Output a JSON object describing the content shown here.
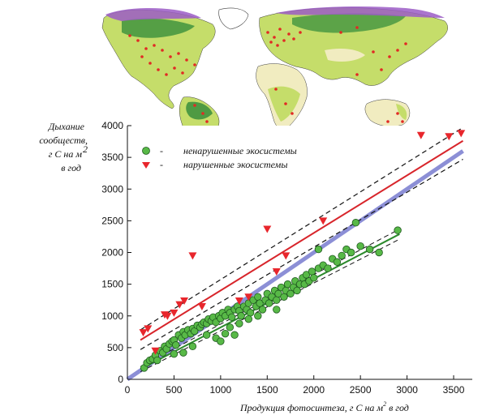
{
  "chart_data": {
    "type": "scatter",
    "ylabel_lines": [
      "Дыхание",
      "сообществ,",
      "г С на м",
      "в год"
    ],
    "ylabel_superscript": "2",
    "xlabel": "Продукция фотосинтеза, г С на м",
    "xlabel_superscript": "2",
    "xlabel_suffix": " в год",
    "xlim": [
      0,
      3700
    ],
    "ylim": [
      0,
      4000
    ],
    "xticks": [
      0,
      500,
      1000,
      1500,
      2000,
      2500,
      3000,
      3500
    ],
    "yticks": [
      0,
      500,
      1000,
      1500,
      2000,
      2500,
      3000,
      3500,
      4000
    ],
    "legend_position": "top-left",
    "series": [
      {
        "name": "ненарушенные экосистемы",
        "marker": "circle",
        "color": "#58b947",
        "points": [
          [
            180,
            180
          ],
          [
            210,
            260
          ],
          [
            240,
            300
          ],
          [
            270,
            320
          ],
          [
            300,
            380
          ],
          [
            320,
            300
          ],
          [
            350,
            450
          ],
          [
            380,
            420
          ],
          [
            400,
            520
          ],
          [
            420,
            480
          ],
          [
            450,
            560
          ],
          [
            480,
            600
          ],
          [
            500,
            620
          ],
          [
            520,
            540
          ],
          [
            550,
            700
          ],
          [
            580,
            650
          ],
          [
            600,
            750
          ],
          [
            620,
            700
          ],
          [
            650,
            780
          ],
          [
            680,
            720
          ],
          [
            700,
            800
          ],
          [
            720,
            760
          ],
          [
            750,
            850
          ],
          [
            780,
            820
          ],
          [
            800,
            870
          ],
          [
            820,
            900
          ],
          [
            850,
            880
          ],
          [
            870,
            950
          ],
          [
            900,
            920
          ],
          [
            920,
            980
          ],
          [
            950,
            900
          ],
          [
            980,
            1000
          ],
          [
            1000,
            960
          ],
          [
            1020,
            1050
          ],
          [
            1050,
            1000
          ],
          [
            1080,
            1100
          ],
          [
            1100,
            1050
          ],
          [
            1120,
            980
          ],
          [
            1150,
            1100
          ],
          [
            1180,
            1150
          ],
          [
            1200,
            1080
          ],
          [
            1220,
            1000
          ],
          [
            1250,
            1150
          ],
          [
            1280,
            1100
          ],
          [
            1300,
            1200
          ],
          [
            1320,
            1050
          ],
          [
            1350,
            1250
          ],
          [
            1380,
            1150
          ],
          [
            1400,
            1300
          ],
          [
            1420,
            1200
          ],
          [
            1450,
            1100
          ],
          [
            1480,
            1250
          ],
          [
            1500,
            1350
          ],
          [
            1520,
            1200
          ],
          [
            1550,
            1300
          ],
          [
            1580,
            1400
          ],
          [
            1600,
            1250
          ],
          [
            1620,
            1350
          ],
          [
            1650,
            1450
          ],
          [
            1680,
            1300
          ],
          [
            1700,
            1400
          ],
          [
            1720,
            1500
          ],
          [
            1750,
            1350
          ],
          [
            1780,
            1450
          ],
          [
            1800,
            1550
          ],
          [
            1820,
            1400
          ],
          [
            1850,
            1500
          ],
          [
            1880,
            1600
          ],
          [
            1900,
            1500
          ],
          [
            1920,
            1650
          ],
          [
            1950,
            1550
          ],
          [
            1980,
            1700
          ],
          [
            2000,
            1600
          ],
          [
            2050,
            1750
          ],
          [
            2100,
            1800
          ],
          [
            2150,
            1750
          ],
          [
            2200,
            1900
          ],
          [
            2250,
            1850
          ],
          [
            2300,
            1950
          ],
          [
            2350,
            2050
          ],
          [
            2400,
            2000
          ],
          [
            2500,
            2100
          ],
          [
            2600,
            2050
          ],
          [
            2700,
            2000
          ],
          [
            2900,
            2350
          ],
          [
            2450,
            2470
          ],
          [
            2050,
            2050
          ],
          [
            1300,
            950
          ],
          [
            1100,
            820
          ],
          [
            1050,
            720
          ],
          [
            950,
            650
          ],
          [
            1200,
            880
          ],
          [
            1400,
            1000
          ],
          [
            1600,
            1100
          ],
          [
            700,
            520
          ],
          [
            600,
            420
          ],
          [
            500,
            400
          ],
          [
            850,
            700
          ],
          [
            1000,
            600
          ],
          [
            1150,
            700
          ]
        ]
      },
      {
        "name": "нарушенные экосистемы",
        "marker": "triangle-down",
        "color": "#e8262c",
        "points": [
          [
            170,
            740
          ],
          [
            220,
            800
          ],
          [
            400,
            1020
          ],
          [
            430,
            1000
          ],
          [
            500,
            1050
          ],
          [
            560,
            1180
          ],
          [
            610,
            1240
          ],
          [
            700,
            1950
          ],
          [
            800,
            1150
          ],
          [
            1200,
            1240
          ],
          [
            1300,
            1300
          ],
          [
            1500,
            2370
          ],
          [
            1600,
            1700
          ],
          [
            1700,
            1950
          ],
          [
            2100,
            2500
          ],
          [
            3150,
            3850
          ],
          [
            3450,
            3830
          ],
          [
            3580,
            3880
          ],
          [
            300,
            450
          ]
        ]
      }
    ],
    "lines": [
      {
        "name": "one-to-one",
        "x": [
          0,
          3600
        ],
        "y": [
          0,
          3600
        ],
        "color": "#8c8fd6",
        "width": 5,
        "dash": false
      },
      {
        "name": "disturbed-fit",
        "x": [
          140,
          3600
        ],
        "y": [
          620,
          3760
        ],
        "color": "#d8252b",
        "width": 2,
        "dash": false
      },
      {
        "name": "disturbed-ci-upper",
        "x": [
          140,
          3600
        ],
        "y": [
          780,
          3970
        ],
        "color": "#111111",
        "width": 1.2,
        "dash": true
      },
      {
        "name": "disturbed-ci-lower",
        "x": [
          140,
          3600
        ],
        "y": [
          470,
          3470
        ],
        "color": "#111111",
        "width": 1.2,
        "dash": true
      },
      {
        "name": "undisturbed-fit",
        "x": [
          140,
          2920
        ],
        "y": [
          160,
          2290
        ],
        "color": "#2c8a2c",
        "width": 2,
        "dash": false
      },
      {
        "name": "undisturbed-ci-upper",
        "x": [
          140,
          2920
        ],
        "y": [
          200,
          2370
        ],
        "color": "#111111",
        "width": 1,
        "dash": true
      },
      {
        "name": "undisturbed-ci-lower",
        "x": [
          140,
          2920
        ],
        "y": [
          120,
          2210
        ],
        "color": "#111111",
        "width": 1,
        "dash": true
      }
    ]
  },
  "map": {
    "colors": {
      "ocean": "#ffffff",
      "land_base": "#c5dd6a",
      "forest": "#2f8a3a",
      "tundra": "#9b5cc5",
      "desert": "#f1ecc0",
      "sites": "#e12a24",
      "borders": "#3a3a3a"
    }
  }
}
